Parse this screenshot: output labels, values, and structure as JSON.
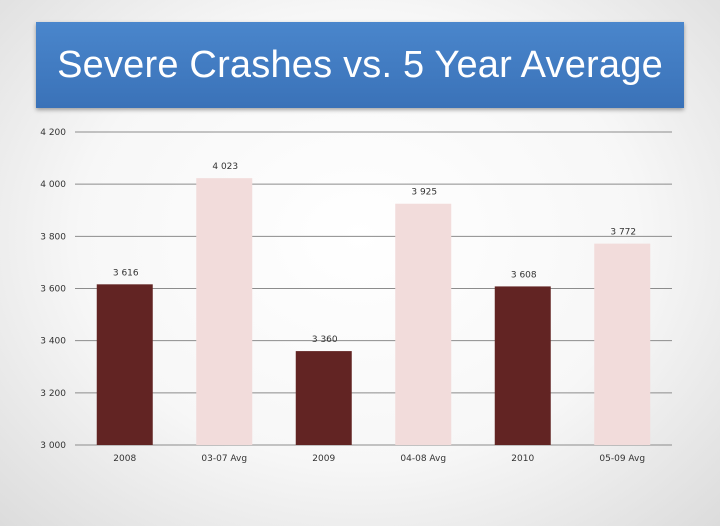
{
  "chart_data": {
    "type": "bar",
    "title": "Severe Crashes vs. 5 Year Average",
    "categories": [
      "2008",
      "03-07 Avg",
      "2009",
      "04-08 Avg",
      "2010",
      "05-09 Avg"
    ],
    "values": [
      3616,
      4023,
      3360,
      3925,
      3608,
      3772
    ],
    "value_labels": [
      "3 616",
      "4 023",
      "3 360",
      "3 925",
      "3 608",
      "3 772"
    ],
    "yticks": [
      "3 000",
      "3 200",
      "3 400",
      "3 600",
      "3 800",
      "4 000",
      "4 200"
    ],
    "ytick_values": [
      3000,
      3200,
      3400,
      3600,
      3800,
      4000,
      4200
    ],
    "ylim": [
      3000,
      4200
    ],
    "grid": true,
    "legend": "none",
    "colors": {
      "actual": "#622423",
      "average": "#f2dcdb",
      "title_bg": "#3e78bd",
      "title_text": "#ffffff",
      "grid": "#8c8c8c"
    },
    "bar_colors": [
      "#622423",
      "#f2dcdb",
      "#622423",
      "#f2dcdb",
      "#622423",
      "#f2dcdb"
    ],
    "xlabel": "",
    "ylabel": ""
  }
}
